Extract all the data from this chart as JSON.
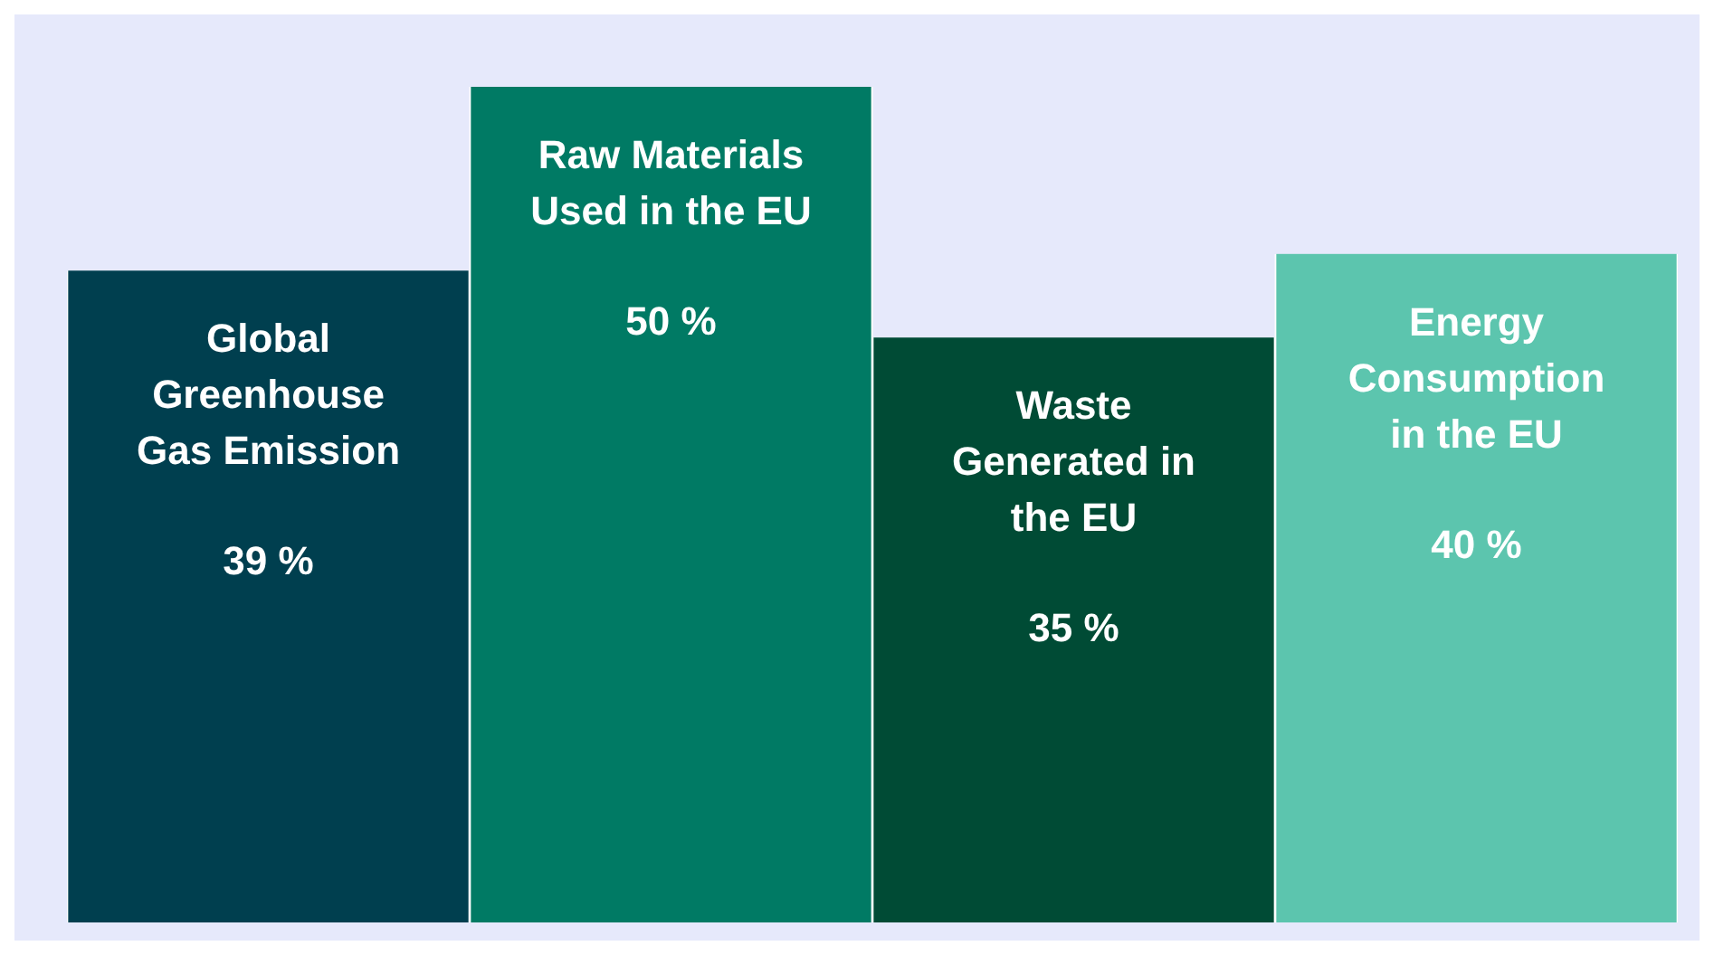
{
  "chart_data": {
    "type": "bar",
    "categories": [
      "Global Greenhouse Gas Emission",
      "Raw Materials Used in the EU",
      "Waste Generated in the EU",
      "Energy Consumption in the EU"
    ],
    "values": [
      39,
      50,
      35,
      40
    ],
    "colors": [
      "#003f4f",
      "#007a64",
      "#004b35",
      "#5cc5ae"
    ],
    "value_labels": [
      "39 %",
      "50 %",
      "35 %",
      "40 %"
    ]
  }
}
